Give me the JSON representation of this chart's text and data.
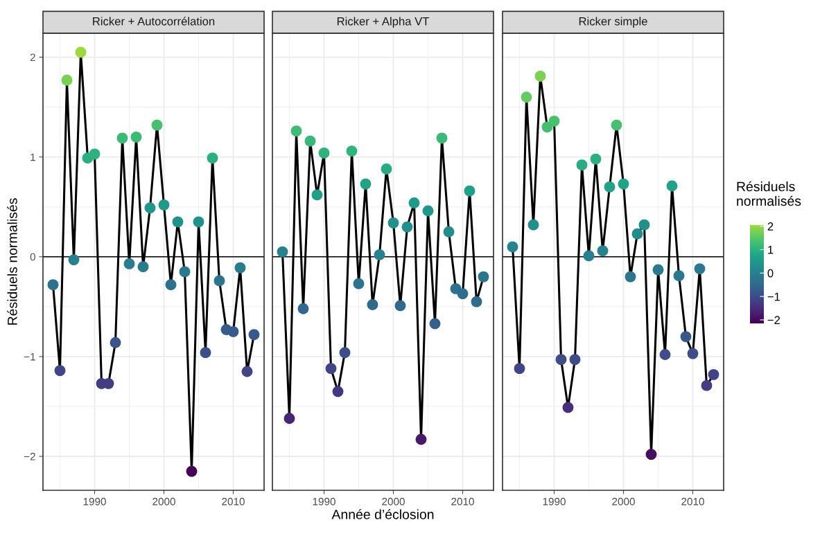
{
  "chart_data": [
    {
      "type": "line",
      "title": "Ricker + Autocorrélation",
      "ylabel": "Résiduels normalisés",
      "x": [
        1984,
        1985,
        1986,
        1987,
        1988,
        1989,
        1990,
        1991,
        1992,
        1993,
        1994,
        1995,
        1996,
        1997,
        1998,
        1999,
        2000,
        2001,
        2002,
        2003,
        2004,
        2005,
        2006,
        2007,
        2008,
        2009,
        2010,
        2011,
        2012,
        2013
      ],
      "series": [
        {
          "color": "#000000",
          "values": [
            -0.28,
            -1.14,
            1.77,
            -0.03,
            2.05,
            0.99,
            1.03,
            -1.27,
            -1.27,
            -0.86,
            1.19,
            -0.07,
            1.2,
            -0.1,
            0.49,
            1.32,
            0.52,
            -0.28,
            0.35,
            -0.15,
            -2.15,
            0.35,
            -0.96,
            0.99,
            -0.24,
            -0.73,
            -0.75,
            -0.11,
            -1.15,
            -0.78
          ]
        }
      ],
      "marker": "circle",
      "xlim": [
        1982.55,
        2014.45
      ],
      "xticks": [
        1990,
        2000,
        2010
      ],
      "ylim": [
        -2.34,
        2.24
      ],
      "yticks": [
        {
          "value": -2,
          "label": "−2"
        },
        {
          "value": -1,
          "label": "−1"
        },
        0,
        1,
        2
      ],
      "grid": true,
      "ref_lines": [
        {
          "axis": "y",
          "value": 0,
          "color": "#000000"
        }
      ]
    },
    {
      "type": "line",
      "title": "Ricker + Alpha VT",
      "xlabel": "Année d’éclosion",
      "x": [
        1984,
        1985,
        1986,
        1987,
        1988,
        1989,
        1990,
        1991,
        1992,
        1993,
        1994,
        1995,
        1996,
        1997,
        1998,
        1999,
        2000,
        2001,
        2002,
        2003,
        2004,
        2005,
        2006,
        2007,
        2008,
        2009,
        2010,
        2011,
        2012,
        2013
      ],
      "series": [
        {
          "color": "#000000",
          "values": [
            0.05,
            -1.62,
            1.26,
            -0.52,
            1.16,
            0.62,
            1.04,
            -1.12,
            -1.35,
            -0.96,
            1.06,
            -0.27,
            0.73,
            -0.48,
            0.02,
            0.88,
            0.34,
            -0.49,
            0.3,
            0.54,
            -1.83,
            0.46,
            -0.67,
            1.19,
            0.25,
            -0.32,
            -0.37,
            0.66,
            -0.45,
            -0.2
          ]
        }
      ],
      "marker": "circle",
      "xlim": [
        1982.55,
        2014.45
      ],
      "xticks": [
        1990,
        2000,
        2010
      ],
      "ylim": [
        -2.34,
        2.24
      ],
      "yticks": [
        -2,
        -1,
        0,
        1,
        2
      ],
      "grid": true,
      "tick_labels": "x",
      "ref_lines": [
        {
          "axis": "y",
          "value": 0,
          "color": "#000000"
        }
      ]
    },
    {
      "type": "line",
      "title": "Ricker simple",
      "clabel": "Résiduels\nnormalisés",
      "x": [
        1984,
        1985,
        1986,
        1987,
        1988,
        1989,
        1990,
        1991,
        1992,
        1993,
        1994,
        1995,
        1996,
        1997,
        1998,
        1999,
        2000,
        2001,
        2002,
        2003,
        2004,
        2005,
        2006,
        2007,
        2008,
        2009,
        2010,
        2011,
        2012,
        2013
      ],
      "series": [
        {
          "color": "#000000",
          "values": [
            0.1,
            -1.12,
            1.6,
            0.32,
            1.81,
            1.3,
            1.36,
            -1.03,
            -1.51,
            -1.03,
            0.92,
            0.01,
            0.98,
            0.06,
            0.7,
            1.32,
            0.73,
            -0.2,
            0.23,
            0.32,
            -1.98,
            -0.13,
            -0.98,
            0.71,
            -0.19,
            -0.8,
            -0.97,
            -0.12,
            -1.29,
            -1.18
          ]
        }
      ],
      "marker": "circle",
      "clim": [
        -2.15,
        2.05
      ],
      "cticks": [
        {
          "value": -2,
          "label": "−2"
        },
        {
          "value": -1,
          "label": "−1"
        },
        0,
        1,
        2
      ],
      "xlim": [
        1982.55,
        2014.45
      ],
      "xticks": [
        1990,
        2000,
        2010
      ],
      "ylim": [
        -2.34,
        2.24
      ],
      "yticks": [
        -2,
        -1,
        0,
        1,
        2
      ],
      "grid": true,
      "tick_labels": "x",
      "ref_lines": [
        {
          "axis": "y",
          "value": 0,
          "color": "#000000"
        }
      ]
    }
  ]
}
